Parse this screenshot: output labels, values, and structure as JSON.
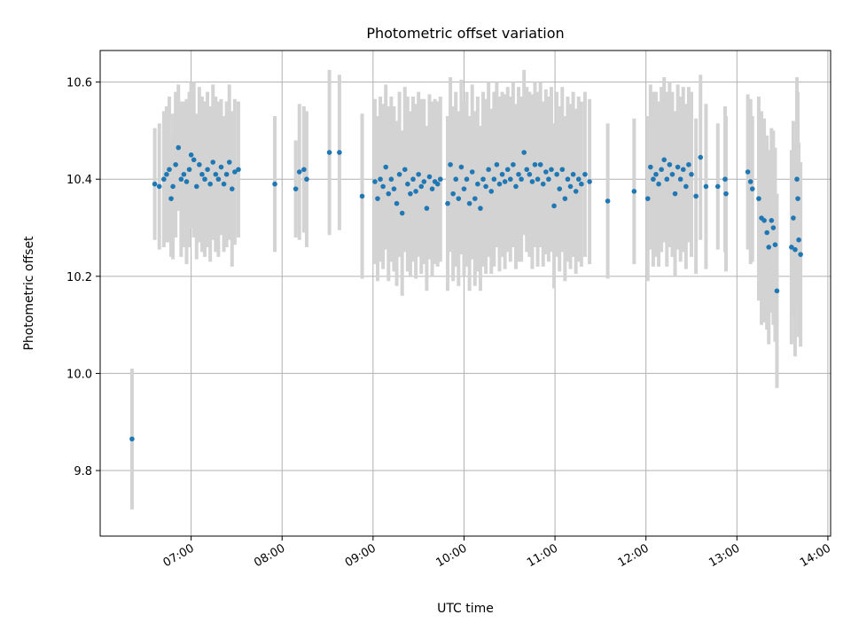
{
  "chart_data": {
    "type": "scatter",
    "title": "Photometric offset variation",
    "xlabel": "UTC time",
    "ylabel": "Photometric offset",
    "x_unit": "hour of day (UTC)",
    "xlim": [
      6.0,
      14.03
    ],
    "ylim": [
      9.665,
      10.665
    ],
    "grid": true,
    "legend": "none",
    "x_ticks": [
      {
        "value": 7,
        "label": "07:00"
      },
      {
        "value": 8,
        "label": "08:00"
      },
      {
        "value": 9,
        "label": "09:00"
      },
      {
        "value": 10,
        "label": "10:00"
      },
      {
        "value": 11,
        "label": "11:00"
      },
      {
        "value": 12,
        "label": "12:00"
      },
      {
        "value": 13,
        "label": "13:00"
      },
      {
        "value": 14,
        "label": "14:00"
      }
    ],
    "y_ticks": [
      {
        "value": 9.8,
        "label": "9.8"
      },
      {
        "value": 10.0,
        "label": "10.0"
      },
      {
        "value": 10.2,
        "label": "10.2"
      },
      {
        "value": 10.4,
        "label": "10.4"
      },
      {
        "value": 10.6,
        "label": "10.6"
      }
    ],
    "colors": {
      "points": "#1f77b4",
      "errorbars": "#d3d3d3",
      "grid": "#b0b0b0"
    },
    "series": [
      {
        "points": [
          [
            6.35,
            9.865,
            0.145
          ],
          [
            6.6,
            10.39,
            0.115
          ],
          [
            6.65,
            10.385,
            0.13
          ],
          [
            6.7,
            10.4,
            0.14
          ],
          [
            6.73,
            10.41,
            0.14
          ],
          [
            6.76,
            10.42,
            0.15
          ],
          [
            6.78,
            10.36,
            0.12
          ],
          [
            6.8,
            10.385,
            0.15
          ],
          [
            6.83,
            10.43,
            0.15
          ],
          [
            6.86,
            10.465,
            0.13
          ],
          [
            6.89,
            10.4,
            0.16
          ],
          [
            6.92,
            10.41,
            0.15
          ],
          [
            6.95,
            10.395,
            0.17
          ],
          [
            6.98,
            10.42,
            0.16
          ],
          [
            7.0,
            10.45,
            0.15
          ],
          [
            7.03,
            10.44,
            0.16
          ],
          [
            7.06,
            10.385,
            0.15
          ],
          [
            7.09,
            10.43,
            0.16
          ],
          [
            7.12,
            10.41,
            0.16
          ],
          [
            7.15,
            10.4,
            0.16
          ],
          [
            7.18,
            10.42,
            0.16
          ],
          [
            7.21,
            10.39,
            0.16
          ],
          [
            7.24,
            10.435,
            0.16
          ],
          [
            7.27,
            10.41,
            0.16
          ],
          [
            7.3,
            10.4,
            0.16
          ],
          [
            7.33,
            10.425,
            0.14
          ],
          [
            7.36,
            10.39,
            0.14
          ],
          [
            7.39,
            10.41,
            0.15
          ],
          [
            7.42,
            10.435,
            0.16
          ],
          [
            7.45,
            10.38,
            0.16
          ],
          [
            7.48,
            10.415,
            0.15
          ],
          [
            7.52,
            10.42,
            0.14
          ],
          [
            7.92,
            10.39,
            0.14
          ],
          [
            8.15,
            10.38,
            0.1
          ],
          [
            8.19,
            10.415,
            0.14
          ],
          [
            8.24,
            10.42,
            0.13
          ],
          [
            8.27,
            10.4,
            0.14
          ],
          [
            8.52,
            10.455,
            0.17
          ],
          [
            8.63,
            10.455,
            0.16
          ],
          [
            8.88,
            10.365,
            0.17
          ],
          [
            9.02,
            10.395,
            0.17
          ],
          [
            9.05,
            10.36,
            0.17
          ],
          [
            9.08,
            10.4,
            0.17
          ],
          [
            9.11,
            10.385,
            0.17
          ],
          [
            9.14,
            10.425,
            0.17
          ],
          [
            9.17,
            10.37,
            0.18
          ],
          [
            9.2,
            10.4,
            0.17
          ],
          [
            9.23,
            10.38,
            0.17
          ],
          [
            9.26,
            10.35,
            0.17
          ],
          [
            9.29,
            10.41,
            0.17
          ],
          [
            9.32,
            10.33,
            0.17
          ],
          [
            9.35,
            10.42,
            0.17
          ],
          [
            9.38,
            10.39,
            0.18
          ],
          [
            9.41,
            10.37,
            0.17
          ],
          [
            9.44,
            10.4,
            0.17
          ],
          [
            9.47,
            10.375,
            0.18
          ],
          [
            9.5,
            10.41,
            0.17
          ],
          [
            9.53,
            10.385,
            0.18
          ],
          [
            9.56,
            10.395,
            0.17
          ],
          [
            9.59,
            10.34,
            0.17
          ],
          [
            9.62,
            10.405,
            0.17
          ],
          [
            9.65,
            10.38,
            0.18
          ],
          [
            9.68,
            10.395,
            0.17
          ],
          [
            9.71,
            10.39,
            0.17
          ],
          [
            9.74,
            10.4,
            0.17
          ],
          [
            9.82,
            10.35,
            0.18
          ],
          [
            9.85,
            10.43,
            0.18
          ],
          [
            9.88,
            10.37,
            0.18
          ],
          [
            9.91,
            10.4,
            0.18
          ],
          [
            9.94,
            10.36,
            0.18
          ],
          [
            9.97,
            10.425,
            0.18
          ],
          [
            10.0,
            10.38,
            0.18
          ],
          [
            10.03,
            10.4,
            0.18
          ],
          [
            10.06,
            10.35,
            0.18
          ],
          [
            10.09,
            10.415,
            0.18
          ],
          [
            10.12,
            10.36,
            0.18
          ],
          [
            10.15,
            10.39,
            0.18
          ],
          [
            10.18,
            10.34,
            0.17
          ],
          [
            10.21,
            10.4,
            0.18
          ],
          [
            10.24,
            10.385,
            0.18
          ],
          [
            10.27,
            10.42,
            0.18
          ],
          [
            10.3,
            10.375,
            0.17
          ],
          [
            10.33,
            10.4,
            0.18
          ],
          [
            10.36,
            10.43,
            0.17
          ],
          [
            10.39,
            10.39,
            0.18
          ],
          [
            10.42,
            10.41,
            0.17
          ],
          [
            10.45,
            10.395,
            0.18
          ],
          [
            10.48,
            10.42,
            0.17
          ],
          [
            10.51,
            10.4,
            0.17
          ],
          [
            10.54,
            10.43,
            0.17
          ],
          [
            10.57,
            10.385,
            0.17
          ],
          [
            10.6,
            10.41,
            0.18
          ],
          [
            10.63,
            10.4,
            0.17
          ],
          [
            10.66,
            10.455,
            0.17
          ],
          [
            10.69,
            10.42,
            0.17
          ],
          [
            10.72,
            10.41,
            0.17
          ],
          [
            10.75,
            10.395,
            0.18
          ],
          [
            10.78,
            10.43,
            0.17
          ],
          [
            10.81,
            10.4,
            0.18
          ],
          [
            10.84,
            10.43,
            0.17
          ],
          [
            10.87,
            10.39,
            0.17
          ],
          [
            10.9,
            10.415,
            0.17
          ],
          [
            10.93,
            10.4,
            0.17
          ],
          [
            10.96,
            10.42,
            0.17
          ],
          [
            10.99,
            10.345,
            0.17
          ],
          [
            11.02,
            10.41,
            0.17
          ],
          [
            11.05,
            10.38,
            0.17
          ],
          [
            11.08,
            10.42,
            0.17
          ],
          [
            11.11,
            10.36,
            0.17
          ],
          [
            11.14,
            10.4,
            0.17
          ],
          [
            11.17,
            10.385,
            0.17
          ],
          [
            11.2,
            10.41,
            0.17
          ],
          [
            11.23,
            10.375,
            0.17
          ],
          [
            11.26,
            10.4,
            0.17
          ],
          [
            11.29,
            10.39,
            0.17
          ],
          [
            11.33,
            10.41,
            0.17
          ],
          [
            11.38,
            10.395,
            0.17
          ],
          [
            11.58,
            10.355,
            0.16
          ],
          [
            11.87,
            10.375,
            0.15
          ],
          [
            12.02,
            10.36,
            0.17
          ],
          [
            12.05,
            10.425,
            0.17
          ],
          [
            12.08,
            10.4,
            0.18
          ],
          [
            12.11,
            10.41,
            0.17
          ],
          [
            12.14,
            10.39,
            0.17
          ],
          [
            12.17,
            10.42,
            0.17
          ],
          [
            12.2,
            10.44,
            0.17
          ],
          [
            12.23,
            10.4,
            0.18
          ],
          [
            12.26,
            10.43,
            0.17
          ],
          [
            12.29,
            10.41,
            0.17
          ],
          [
            12.32,
            10.37,
            0.17
          ],
          [
            12.35,
            10.425,
            0.17
          ],
          [
            12.38,
            10.4,
            0.17
          ],
          [
            12.41,
            10.42,
            0.17
          ],
          [
            12.44,
            10.385,
            0.17
          ],
          [
            12.47,
            10.43,
            0.16
          ],
          [
            12.5,
            10.41,
            0.17
          ],
          [
            12.55,
            10.365,
            0.16
          ],
          [
            12.6,
            10.445,
            0.17
          ],
          [
            12.66,
            10.385,
            0.17
          ],
          [
            12.79,
            10.385,
            0.13
          ],
          [
            12.87,
            10.4,
            0.15
          ],
          [
            12.88,
            10.37,
            0.16
          ],
          [
            13.12,
            10.415,
            0.16
          ],
          [
            13.15,
            10.395,
            0.17
          ],
          [
            13.17,
            10.38,
            0.15
          ],
          [
            13.24,
            10.36,
            0.21
          ],
          [
            13.27,
            10.32,
            0.22
          ],
          [
            13.3,
            10.315,
            0.21
          ],
          [
            13.33,
            10.29,
            0.2
          ],
          [
            13.35,
            10.26,
            0.2
          ],
          [
            13.38,
            10.315,
            0.19
          ],
          [
            13.4,
            10.3,
            0.2
          ],
          [
            13.42,
            10.265,
            0.2
          ],
          [
            13.44,
            10.17,
            0.2
          ],
          [
            13.6,
            10.26,
            0.2
          ],
          [
            13.62,
            10.32,
            0.2
          ],
          [
            13.64,
            10.255,
            0.22
          ],
          [
            13.66,
            10.4,
            0.21
          ],
          [
            13.67,
            10.36,
            0.22
          ],
          [
            13.68,
            10.275,
            0.2
          ],
          [
            13.7,
            10.245,
            0.19
          ]
        ]
      }
    ]
  }
}
